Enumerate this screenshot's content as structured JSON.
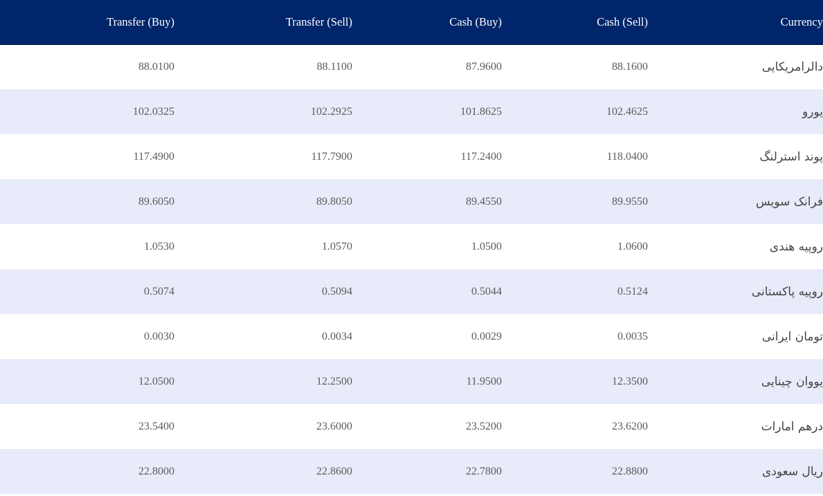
{
  "table": {
    "headers": {
      "transfer_buy": "Transfer (Buy)",
      "transfer_sell": "Transfer (Sell)",
      "cash_buy": "Cash (Buy)",
      "cash_sell": "Cash (Sell)",
      "currency": "Currency"
    },
    "rows": [
      {
        "currency": "دالرامریکایی",
        "transfer_buy": "88.0100",
        "transfer_sell": "88.1100",
        "cash_buy": "87.9600",
        "cash_sell": "88.1600"
      },
      {
        "currency": "یورو",
        "transfer_buy": "102.0325",
        "transfer_sell": "102.2925",
        "cash_buy": "101.8625",
        "cash_sell": "102.4625"
      },
      {
        "currency": "پوند استرلنگ",
        "transfer_buy": "117.4900",
        "transfer_sell": "117.7900",
        "cash_buy": "117.2400",
        "cash_sell": "118.0400"
      },
      {
        "currency": "فرانک سویس",
        "transfer_buy": "89.6050",
        "transfer_sell": "89.8050",
        "cash_buy": "89.4550",
        "cash_sell": "89.9550"
      },
      {
        "currency": "روپیه هندی",
        "transfer_buy": "1.0530",
        "transfer_sell": "1.0570",
        "cash_buy": "1.0500",
        "cash_sell": "1.0600"
      },
      {
        "currency": "روپیه پاکستانی",
        "transfer_buy": "0.5074",
        "transfer_sell": "0.5094",
        "cash_buy": "0.5044",
        "cash_sell": "0.5124"
      },
      {
        "currency": "تومان ایرانی",
        "transfer_buy": "0.0030",
        "transfer_sell": "0.0034",
        "cash_buy": "0.0029",
        "cash_sell": "0.0035"
      },
      {
        "currency": "یووان چینایی",
        "transfer_buy": "12.0500",
        "transfer_sell": "12.2500",
        "cash_buy": "11.9500",
        "cash_sell": "12.3500"
      },
      {
        "currency": "درهم امارات",
        "transfer_buy": "23.5400",
        "transfer_sell": "23.6000",
        "cash_buy": "23.5200",
        "cash_sell": "23.6200"
      },
      {
        "currency": "ریال سعودی",
        "transfer_buy": "22.8000",
        "transfer_sell": "22.8600",
        "cash_buy": "22.7800",
        "cash_sell": "22.8800"
      }
    ]
  },
  "colors": {
    "header_background": "#00256a",
    "header_text": "#ffffff",
    "row_alt_background": "#e8ebf9",
    "row_background": "#ffffff",
    "cell_text": "#5b5b5b"
  }
}
